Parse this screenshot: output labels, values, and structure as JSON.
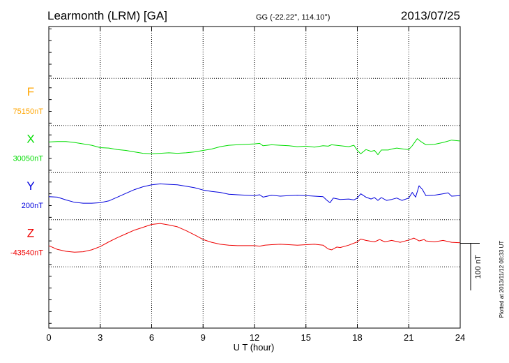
{
  "header": {
    "station": "Learmonth (LRM)  [GA]",
    "coords": "GG (-22.22°, 114.10°)",
    "date": "2013/07/25"
  },
  "footer": {
    "plotted": "Plotted at 2013/11/12 08:33 UT"
  },
  "colors": {
    "F": "#ffa500",
    "X": "#00dd00",
    "Y": "#0000dd",
    "Z": "#ee0000",
    "grid": "#000000",
    "background": "#ffffff"
  },
  "chart_data": {
    "type": "line",
    "title": "Learmonth (LRM)  [GA]",
    "xlabel": "U T (hour)",
    "x_ticks": [
      0,
      3,
      6,
      9,
      12,
      15,
      18,
      21,
      24
    ],
    "x_tick_labels": [
      "0",
      "3",
      "6",
      "9",
      "12",
      "15",
      "18",
      "21",
      "24"
    ],
    "xlim": [
      0,
      24
    ],
    "ylim": [
      -180,
      460
    ],
    "y_gridlines_nT": [
      -50,
      50,
      150,
      250,
      350
    ],
    "scale_bar": {
      "label": "100 nT",
      "value_nT": 100
    },
    "series": [
      {
        "key": "F",
        "name": "F",
        "base_label": "75150nT",
        "offset_nT": 300,
        "points": []
      },
      {
        "key": "X",
        "name": "X",
        "base_label": "30050nT",
        "offset_nT": 200,
        "points": [
          [
            0,
            15
          ],
          [
            0.5,
            16
          ],
          [
            1,
            16
          ],
          [
            1.5,
            14
          ],
          [
            2,
            11
          ],
          [
            2.5,
            8
          ],
          [
            3,
            3
          ],
          [
            3.5,
            2
          ],
          [
            4,
            -1
          ],
          [
            4.5,
            -3
          ],
          [
            5,
            -6
          ],
          [
            5.5,
            -9
          ],
          [
            6,
            -10
          ],
          [
            6.5,
            -9
          ],
          [
            7,
            -8
          ],
          [
            7.5,
            -9
          ],
          [
            8,
            -8
          ],
          [
            8.5,
            -6
          ],
          [
            9,
            -3
          ],
          [
            9.5,
            0
          ],
          [
            10,
            5
          ],
          [
            10.5,
            8
          ],
          [
            11,
            9
          ],
          [
            11.5,
            10
          ],
          [
            12,
            11
          ],
          [
            12.3,
            12
          ],
          [
            12.5,
            7
          ],
          [
            13,
            9
          ],
          [
            13.5,
            8
          ],
          [
            14,
            7
          ],
          [
            14.5,
            5
          ],
          [
            15,
            6
          ],
          [
            15.5,
            4
          ],
          [
            16,
            7
          ],
          [
            16.3,
            6
          ],
          [
            16.5,
            9
          ],
          [
            17,
            7
          ],
          [
            17.5,
            5
          ],
          [
            17.8,
            8
          ],
          [
            18,
            -3
          ],
          [
            18.2,
            -10
          ],
          [
            18.5,
            -1
          ],
          [
            18.8,
            -5
          ],
          [
            19,
            -3
          ],
          [
            19.2,
            -12
          ],
          [
            19.4,
            -2
          ],
          [
            19.8,
            -2
          ],
          [
            20,
            0
          ],
          [
            20.3,
            2
          ],
          [
            20.7,
            0
          ],
          [
            21,
            -1
          ],
          [
            21.2,
            7
          ],
          [
            21.5,
            22
          ],
          [
            21.7,
            16
          ],
          [
            22,
            9
          ],
          [
            22.5,
            10
          ],
          [
            23,
            14
          ],
          [
            23.5,
            19
          ],
          [
            24,
            17
          ]
        ]
      },
      {
        "key": "Y",
        "name": "Y",
        "base_label": "200nT",
        "offset_nT": 100,
        "points": [
          [
            0,
            -1
          ],
          [
            0.5,
            -2
          ],
          [
            1,
            -8
          ],
          [
            1.5,
            -13
          ],
          [
            2,
            -15
          ],
          [
            2.5,
            -15
          ],
          [
            3,
            -14
          ],
          [
            3.5,
            -10
          ],
          [
            4,
            -2
          ],
          [
            4.5,
            6
          ],
          [
            5,
            14
          ],
          [
            5.5,
            20
          ],
          [
            6,
            24
          ],
          [
            6.5,
            26
          ],
          [
            7,
            25
          ],
          [
            7.5,
            24
          ],
          [
            8,
            21
          ],
          [
            8.5,
            18
          ],
          [
            9,
            13
          ],
          [
            9.5,
            10
          ],
          [
            10,
            8
          ],
          [
            10.5,
            4
          ],
          [
            11,
            3
          ],
          [
            11.5,
            2
          ],
          [
            12,
            1
          ],
          [
            12.3,
            3
          ],
          [
            12.5,
            -2
          ],
          [
            13,
            2
          ],
          [
            13.5,
            0
          ],
          [
            14,
            1
          ],
          [
            14.5,
            2
          ],
          [
            15,
            1
          ],
          [
            15.5,
            0
          ],
          [
            16,
            -1
          ],
          [
            16.2,
            -8
          ],
          [
            16.4,
            -14
          ],
          [
            16.6,
            -4
          ],
          [
            17,
            -7
          ],
          [
            17.5,
            -6
          ],
          [
            17.8,
            -8
          ],
          [
            18,
            -4
          ],
          [
            18.2,
            5
          ],
          [
            18.5,
            -2
          ],
          [
            18.8,
            -6
          ],
          [
            19,
            -3
          ],
          [
            19.2,
            -9
          ],
          [
            19.4,
            -3
          ],
          [
            19.7,
            -9
          ],
          [
            20,
            -7
          ],
          [
            20.3,
            -4
          ],
          [
            20.6,
            -9
          ],
          [
            21,
            -4
          ],
          [
            21.2,
            8
          ],
          [
            21.4,
            -2
          ],
          [
            21.6,
            22
          ],
          [
            21.8,
            14
          ],
          [
            22,
            1
          ],
          [
            22.5,
            2
          ],
          [
            23,
            5
          ],
          [
            23.3,
            7
          ],
          [
            23.5,
            0
          ],
          [
            24,
            1
          ]
        ]
      },
      {
        "key": "Z",
        "name": "Z",
        "base_label": "-43540nT",
        "offset_nT": 0,
        "points": [
          [
            0,
            -5
          ],
          [
            0.5,
            -13
          ],
          [
            1,
            -17
          ],
          [
            1.5,
            -19
          ],
          [
            2,
            -18
          ],
          [
            2.5,
            -14
          ],
          [
            3,
            -7
          ],
          [
            3.5,
            3
          ],
          [
            4,
            12
          ],
          [
            4.5,
            20
          ],
          [
            5,
            28
          ],
          [
            5.5,
            34
          ],
          [
            6,
            40
          ],
          [
            6.5,
            42
          ],
          [
            7,
            39
          ],
          [
            7.5,
            35
          ],
          [
            8,
            27
          ],
          [
            8.5,
            18
          ],
          [
            9,
            8
          ],
          [
            9.5,
            2
          ],
          [
            10,
            -2
          ],
          [
            10.5,
            -4
          ],
          [
            11,
            -5
          ],
          [
            11.5,
            -5
          ],
          [
            12,
            -5
          ],
          [
            12.3,
            -6
          ],
          [
            12.6,
            -4
          ],
          [
            13,
            -3
          ],
          [
            13.5,
            -2
          ],
          [
            14,
            -3
          ],
          [
            14.5,
            -4
          ],
          [
            15,
            -3
          ],
          [
            15.5,
            -2
          ],
          [
            16,
            -4
          ],
          [
            16.3,
            -12
          ],
          [
            16.5,
            -14
          ],
          [
            16.8,
            -8
          ],
          [
            17,
            -9
          ],
          [
            17.5,
            -4
          ],
          [
            18,
            3
          ],
          [
            18.2,
            9
          ],
          [
            18.5,
            6
          ],
          [
            19,
            3
          ],
          [
            19.3,
            8
          ],
          [
            19.6,
            3
          ],
          [
            20,
            6
          ],
          [
            20.5,
            2
          ],
          [
            21,
            7
          ],
          [
            21.3,
            11
          ],
          [
            21.6,
            5
          ],
          [
            21.9,
            8
          ],
          [
            22,
            5
          ],
          [
            22.5,
            3
          ],
          [
            23,
            6
          ],
          [
            23.5,
            2
          ],
          [
            24,
            1
          ]
        ]
      }
    ]
  }
}
